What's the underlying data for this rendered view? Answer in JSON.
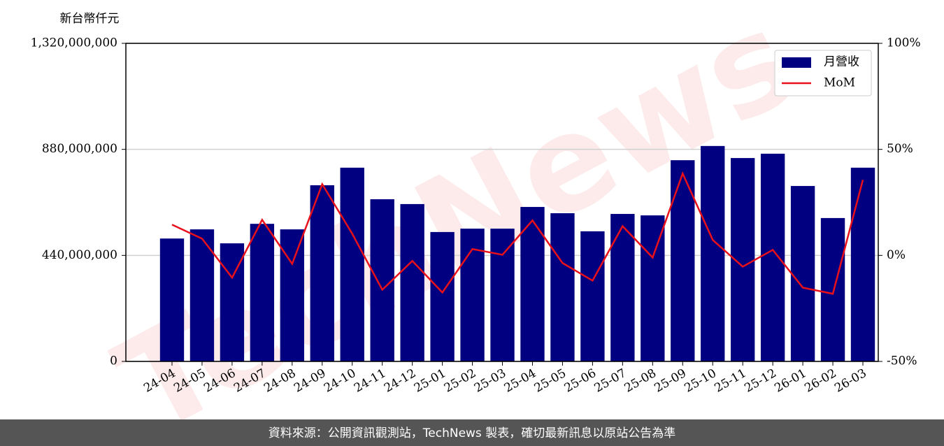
{
  "chart_data": {
    "type": "bar_line",
    "y_label": "新台幣仟元",
    "watermark": "TechNews",
    "footer": "資料來源：公開資訊觀測站，TechNews 製表，確切最新訊息以原站公告為準",
    "categories": [
      "24-04",
      "24-05",
      "24-06",
      "24-07",
      "24-08",
      "24-09",
      "24-10",
      "24-11",
      "24-12",
      "25-01",
      "25-02",
      "25-03",
      "25-04",
      "25-05",
      "25-06",
      "25-07",
      "25-08",
      "25-09",
      "25-10",
      "25-11",
      "25-12",
      "26-01",
      "26-02",
      "26-03"
    ],
    "series": [
      {
        "name": "月營收",
        "color": "#000080",
        "values": [
          510000000,
          548000000,
          490000000,
          571000000,
          548000000,
          731000000,
          804000000,
          673000000,
          653000000,
          537000000,
          551000000,
          551000000,
          641000000,
          615000000,
          540000000,
          612000000,
          606000000,
          835000000,
          894000000,
          844000000,
          862000000,
          728000000,
          595000000,
          804000000
        ]
      },
      {
        "name": "MoM",
        "color": "#e8111b",
        "axis": "y2",
        "values": [
          14.5,
          7.9,
          -10.5,
          16.8,
          -4,
          33.6,
          10.2,
          -16.2,
          -2.6,
          -17.5,
          3,
          0.3,
          16.5,
          -3.6,
          -11.9,
          13.8,
          -1,
          38.6,
          7.3,
          -5.3,
          2.6,
          -15.2,
          -18.1,
          35.6
        ]
      }
    ],
    "ylim": [
      0,
      1320000000
    ],
    "yticks": [
      0,
      {
        "value": 440000000,
        "label": "440,000,000"
      },
      {
        "value": 880000000,
        "label": "880,000,000"
      },
      {
        "value": 1320000000,
        "label": "1,320,000,000"
      }
    ],
    "y2lim": [
      -50,
      100
    ],
    "y2ticks": [
      {
        "value": -50,
        "label": "-50%"
      },
      {
        "value": 0,
        "label": "0%"
      },
      {
        "value": 50,
        "label": "50%"
      },
      {
        "value": 100,
        "label": "100%"
      }
    ],
    "grid": true,
    "legend": "upper right"
  }
}
